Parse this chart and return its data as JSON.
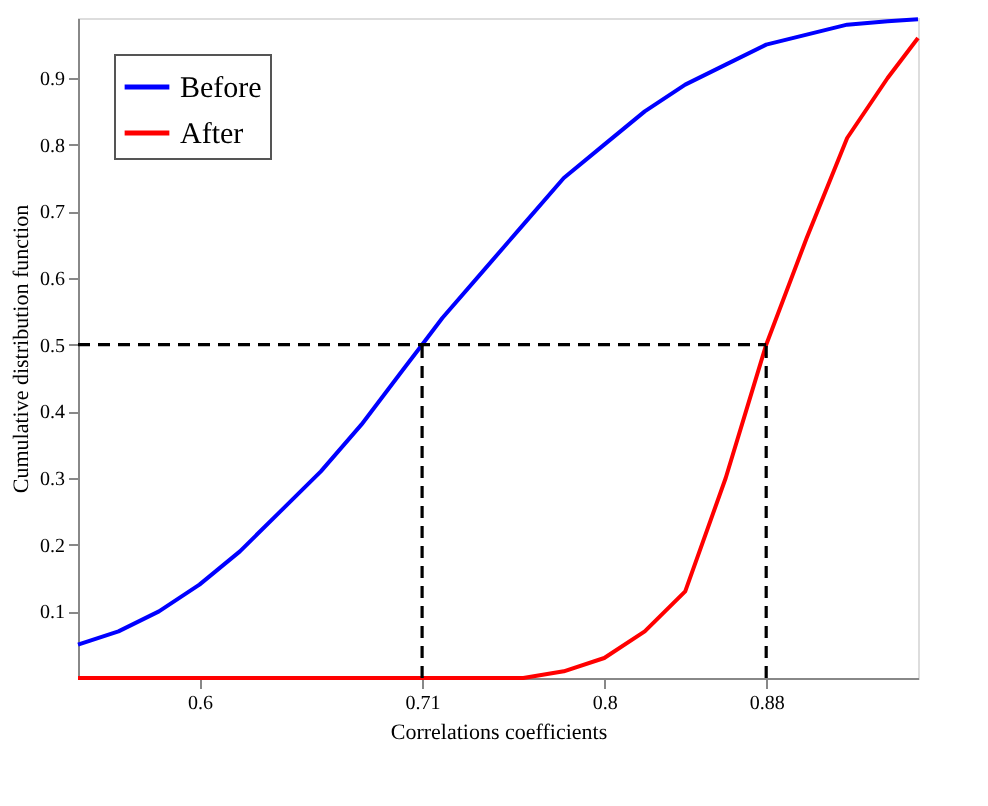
{
  "chart_data": {
    "type": "line",
    "xlabel": "Correlations coefficients",
    "ylabel": "Cumulative distribution function",
    "xlim": [
      0.54,
      0.955
    ],
    "ylim": [
      0,
      0.99
    ],
    "xticks": [
      0.6,
      0.71,
      0.8,
      0.88
    ],
    "yticks": [
      0.1,
      0.2,
      0.3,
      0.4,
      0.5,
      0.6,
      0.7,
      0.8,
      0.9
    ],
    "grid": false,
    "legend": "top left",
    "marker": "none",
    "line_style": "solid",
    "series": [
      {
        "name": "Before",
        "color": "#0000ff",
        "x": [
          0.54,
          0.56,
          0.58,
          0.6,
          0.62,
          0.64,
          0.66,
          0.68,
          0.7,
          0.71,
          0.72,
          0.74,
          0.76,
          0.78,
          0.8,
          0.82,
          0.84,
          0.86,
          0.88,
          0.9,
          0.92,
          0.94,
          0.955
        ],
        "values": [
          0.05,
          0.07,
          0.1,
          0.14,
          0.19,
          0.25,
          0.31,
          0.38,
          0.46,
          0.5,
          0.54,
          0.61,
          0.68,
          0.75,
          0.8,
          0.85,
          0.89,
          0.92,
          0.95,
          0.965,
          0.98,
          0.985,
          0.988
        ]
      },
      {
        "name": "After",
        "color": "#ff0000",
        "x": [
          0.54,
          0.6,
          0.7,
          0.76,
          0.78,
          0.8,
          0.82,
          0.84,
          0.86,
          0.87,
          0.88,
          0.9,
          0.92,
          0.94,
          0.955
        ],
        "values": [
          0,
          0,
          0,
          0,
          0.01,
          0.03,
          0.07,
          0.13,
          0.3,
          0.4,
          0.5,
          0.66,
          0.81,
          0.9,
          0.96
        ]
      },
      {
        "color": "#000000",
        "line_style": "dashed",
        "x": [
          0.54,
          0.88
        ],
        "values": [
          0.5,
          0.5
        ]
      },
      {
        "color": "#000000",
        "line_style": "dashed",
        "x": [
          0.71,
          0.71
        ],
        "values": [
          0,
          0.5
        ]
      },
      {
        "color": "#000000",
        "line_style": "dashed",
        "x": [
          0.88,
          0.88
        ],
        "values": [
          0,
          0.5
        ]
      }
    ]
  }
}
